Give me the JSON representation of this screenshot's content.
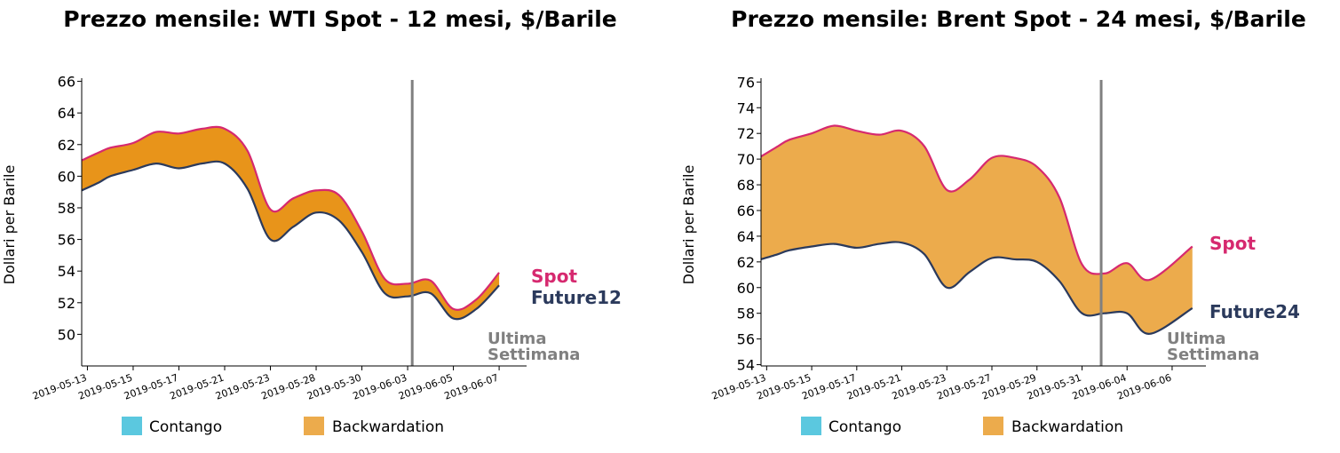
{
  "colors": {
    "spot": "#d6296f",
    "future": "#2b3a5c",
    "contango": "#5bc8df",
    "backwardation_wti": "#e8941a",
    "backwardation_brent": "#ecab4c",
    "backwardation_legend": "#ecab4c",
    "vline": "#808080"
  },
  "chart_data": [
    {
      "type": "area",
      "title": "Prezzo mensile: WTI Spot - 12 mesi, $/Barile",
      "ylabel": "Dollari per Barile",
      "ylim": [
        48,
        66.2
      ],
      "yticks": [
        50,
        52,
        54,
        56,
        58,
        60,
        62,
        64,
        66
      ],
      "xlim": [
        -0.25,
        19.2
      ],
      "xticks": [
        {
          "x": 0,
          "label": "2019-05-13"
        },
        {
          "x": 2,
          "label": "2019-05-15"
        },
        {
          "x": 4,
          "label": "2019-05-17"
        },
        {
          "x": 6,
          "label": "2019-05-21"
        },
        {
          "x": 8,
          "label": "2019-05-23"
        },
        {
          "x": 10,
          "label": "2019-05-28"
        },
        {
          "x": 12,
          "label": "2019-05-30"
        },
        {
          "x": 14,
          "label": "2019-06-03"
        },
        {
          "x": 16,
          "label": "2019-06-05"
        },
        {
          "x": 18,
          "label": "2019-06-07"
        }
      ],
      "x": [
        -0.25,
        0.5,
        1,
        2,
        3,
        4,
        5,
        6,
        7,
        8,
        9,
        10,
        11,
        12,
        13,
        14,
        15,
        16,
        17,
        18
      ],
      "series": [
        {
          "name": "Spot",
          "values": [
            61.0,
            61.5,
            61.8,
            62.1,
            62.8,
            62.7,
            63.0,
            63.0,
            61.6,
            57.9,
            58.6,
            59.1,
            58.8,
            56.5,
            53.5,
            53.2,
            53.4,
            51.6,
            52.2,
            53.9
          ]
        },
        {
          "name": "Future12",
          "values": [
            59.1,
            59.6,
            60.0,
            60.4,
            60.8,
            60.5,
            60.8,
            60.8,
            59.2,
            56.0,
            56.8,
            57.7,
            57.2,
            55.2,
            52.6,
            52.4,
            52.6,
            51.0,
            51.6,
            53.1
          ]
        }
      ],
      "vline_x": 14.2,
      "vline_label": [
        "Ultima",
        "Settimana"
      ],
      "legend": [
        "Contango",
        "Backwardation"
      ]
    },
    {
      "type": "area",
      "title": "Prezzo mensile: Brent Spot - 24 mesi, $/Barile",
      "ylabel": "Dollari per Barile",
      "ylim": [
        53.9,
        76.3
      ],
      "yticks": [
        54,
        56,
        58,
        60,
        62,
        64,
        66,
        68,
        70,
        72,
        74,
        76
      ],
      "xlim": [
        -0.25,
        19.5
      ],
      "xticks": [
        {
          "x": 0,
          "label": "2019-05-13"
        },
        {
          "x": 2,
          "label": "2019-05-15"
        },
        {
          "x": 4,
          "label": "2019-05-17"
        },
        {
          "x": 6,
          "label": "2019-05-21"
        },
        {
          "x": 8,
          "label": "2019-05-23"
        },
        {
          "x": 10,
          "label": "2019-05-27"
        },
        {
          "x": 12,
          "label": "2019-05-29"
        },
        {
          "x": 14,
          "label": "2019-05-31"
        },
        {
          "x": 16,
          "label": "2019-06-04"
        },
        {
          "x": 18,
          "label": "2019-06-06"
        }
      ],
      "x": [
        -0.25,
        0.5,
        1,
        2,
        3,
        4,
        5,
        6,
        7,
        8,
        9,
        10,
        11,
        12,
        13,
        14,
        15,
        16,
        17,
        18.9
      ],
      "series": [
        {
          "name": "Spot",
          "values": [
            70.2,
            71.0,
            71.5,
            72.0,
            72.6,
            72.2,
            71.9,
            72.2,
            71.0,
            67.6,
            68.4,
            70.1,
            70.1,
            69.4,
            67.0,
            61.8,
            61.1,
            61.9,
            60.6,
            63.2
          ]
        },
        {
          "name": "Future24",
          "values": [
            62.2,
            62.6,
            62.9,
            63.2,
            63.4,
            63.1,
            63.4,
            63.5,
            62.6,
            60.0,
            61.2,
            62.3,
            62.2,
            62.0,
            60.5,
            58.0,
            58.0,
            58.0,
            56.4,
            58.4
          ]
        }
      ],
      "vline_x": 14.85,
      "vline_label": [
        "Ultima",
        "Settimana"
      ],
      "legend": [
        "Contango",
        "Backwardation"
      ]
    }
  ]
}
